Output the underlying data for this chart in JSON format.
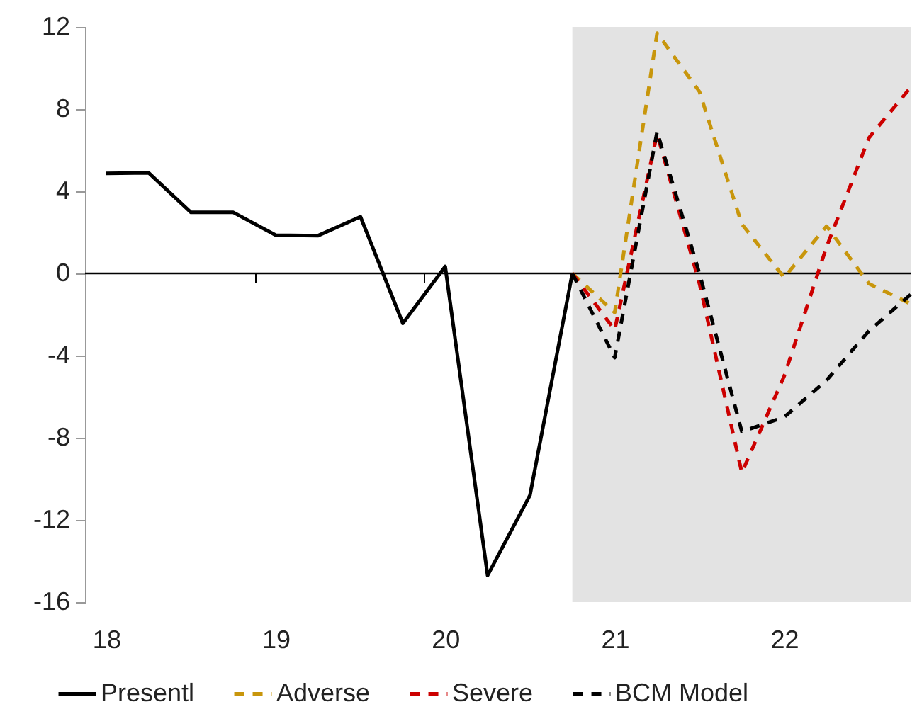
{
  "chart_data": {
    "type": "line",
    "series": [
      {
        "name": "Presentl",
        "color": "#000000",
        "line_style": "solid",
        "x": [
          18,
          18.25,
          18.5,
          18.75,
          19,
          19.25,
          19.5,
          19.75,
          20,
          20.25,
          20.5,
          20.75
        ],
        "values": [
          4.87,
          4.9,
          2.97,
          2.97,
          1.86,
          1.84,
          2.76,
          -2.43,
          0.34,
          -14.7,
          -10.8,
          0
        ]
      },
      {
        "name": "Adverse",
        "color": "#c8960c",
        "line_style": "dashed",
        "x": [
          20.75,
          21,
          21.25,
          21.5,
          21.75,
          22,
          22.25,
          22.5,
          22.75
        ],
        "values": [
          0,
          -1.9,
          11.7,
          8.85,
          2.4,
          -0.2,
          2.3,
          -0.5,
          -1.5
        ]
      },
      {
        "name": "Severe",
        "color": "#cc0000",
        "line_style": "dashed",
        "x": [
          20.75,
          21,
          21.25,
          21.5,
          21.75,
          22,
          22.25,
          22.5,
          22.75
        ],
        "values": [
          0,
          -2.75,
          6.8,
          -0.5,
          -9.7,
          -5.0,
          1.3,
          6.6,
          9.1
        ]
      },
      {
        "name": "BCM Model",
        "color": "#000000",
        "line_style": "dashed",
        "x": [
          20.75,
          21,
          21.25,
          21.5,
          21.75,
          22,
          22.25,
          22.5,
          22.75
        ],
        "values": [
          0,
          -4.1,
          6.9,
          0,
          -7.7,
          -7.0,
          -5.2,
          -2.8,
          -1.0
        ]
      }
    ],
    "xlim": [
      17.875,
      22.75
    ],
    "xticks": [
      18,
      19,
      20,
      21,
      22,
      {
        "value": 17.875,
        "label": null
      },
      {
        "value": 18.875,
        "label": null
      },
      {
        "value": 19.875,
        "label": null
      },
      {
        "value": 20.875,
        "label": null
      },
      {
        "value": 21.875,
        "label": null
      }
    ],
    "ylim": [
      -16,
      12
    ],
    "yticks": [
      -16,
      -12,
      -8,
      -4,
      0,
      4,
      8,
      12
    ],
    "ref_lines": [
      {
        "axis": "y",
        "value": 0,
        "color": "#000000"
      }
    ],
    "bands": [
      {
        "axis": "x",
        "from": 20.75,
        "to": 22.75,
        "color": "#e3e3e3"
      }
    ],
    "grid": false,
    "legend": "bottom",
    "marker": "none"
  }
}
